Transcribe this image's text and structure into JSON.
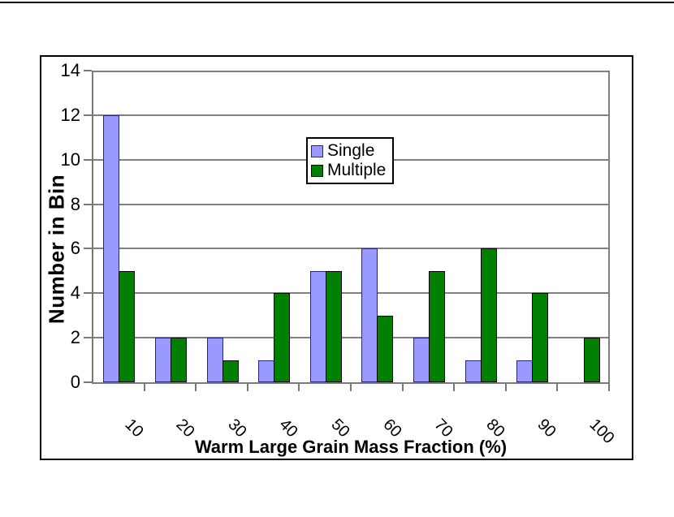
{
  "chart_data": {
    "type": "bar",
    "title": "",
    "xlabel": "Warm Large Grain Mass Fraction (%)",
    "ylabel": "Number in Bin",
    "categories": [
      "10",
      "20",
      "30",
      "40",
      "50",
      "60",
      "70",
      "80",
      "90",
      "100"
    ],
    "series": [
      {
        "name": "Single",
        "color": "#9999FF",
        "border_color": "#26267E",
        "values": [
          12,
          2,
          2,
          1,
          5,
          6,
          2,
          1,
          1,
          0
        ]
      },
      {
        "name": "Multiple",
        "color": "#008000",
        "border_color": "#000000",
        "values": [
          5,
          2,
          1,
          4,
          5,
          3,
          5,
          6,
          4,
          2
        ]
      }
    ],
    "ylim": [
      0,
      14
    ],
    "ytick_step": 2,
    "yticks": [
      0,
      2,
      4,
      6,
      8,
      10,
      12,
      14
    ],
    "grid": true,
    "x_tick_label_rotation_deg": 45,
    "legend_position": "top-center",
    "colors": {
      "gridline": "#808080",
      "axis": "#787878",
      "frame_border": "#000000",
      "background": "#ffffff"
    }
  }
}
